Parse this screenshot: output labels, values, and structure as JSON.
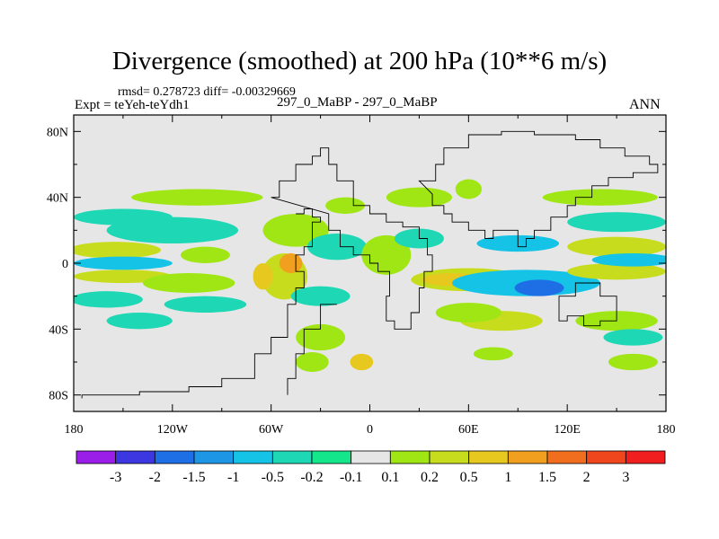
{
  "chart_data": {
    "type": "heatmap",
    "title": "Divergence (smoothed) at 200 hPa (10**6 m/s)",
    "stats": "rmsd= 0.278723 diff= -0.00329669",
    "experiment": "Expt = teYeh-teYdh1",
    "comparison": "297_0_MaBP - 297_0_MaBP",
    "season": "ANN",
    "xlim": [
      -180,
      180
    ],
    "ylim": [
      -90,
      90
    ],
    "x_ticks": [
      {
        "value": -180,
        "label": "180"
      },
      {
        "value": -120,
        "label": "120W"
      },
      {
        "value": -60,
        "label": "60W"
      },
      {
        "value": 0,
        "label": "0"
      },
      {
        "value": 60,
        "label": "60E"
      },
      {
        "value": 120,
        "label": "120E"
      },
      {
        "value": 180,
        "label": "180"
      }
    ],
    "y_ticks": [
      {
        "value": 80,
        "label": "80N"
      },
      {
        "value": 40,
        "label": "40N"
      },
      {
        "value": 0,
        "label": "0"
      },
      {
        "value": -40,
        "label": "40S"
      },
      {
        "value": -80,
        "label": "80S"
      }
    ],
    "colorbar": {
      "labels": [
        "-3",
        "-2",
        "-1.5",
        "-1",
        "-0.5",
        "-0.2",
        "-0.1",
        "0.1",
        "0.2",
        "0.5",
        "1",
        "1.5",
        "2",
        "3"
      ],
      "colors": [
        "#9a1ee8",
        "#3c37e0",
        "#1e6ee6",
        "#1e96e6",
        "#14c3e6",
        "#1ed7b4",
        "#14e68c",
        "#e6e6e6",
        "#a0e614",
        "#c8dc1e",
        "#e6c81e",
        "#f0a01e",
        "#f06e1e",
        "#f0461e",
        "#f01e1e"
      ]
    },
    "features": [
      {
        "name": "tropical band 1",
        "lon": -155,
        "lat": 8,
        "rx": 28,
        "ry": 5,
        "bin": 9
      },
      {
        "name": "tropical band 2",
        "lon": -150,
        "lat": 0,
        "rx": 30,
        "ry": 4,
        "bin": 4
      },
      {
        "name": "tropical band 3",
        "lon": -150,
        "lat": -8,
        "rx": 30,
        "ry": 4,
        "bin": 9
      },
      {
        "name": "band 4",
        "lon": -150,
        "lat": 28,
        "rx": 30,
        "ry": 5,
        "bin": 5
      },
      {
        "name": "band 5",
        "lon": -160,
        "lat": -22,
        "rx": 22,
        "ry": 5,
        "bin": 5
      },
      {
        "name": "band 6",
        "lon": -120,
        "lat": 20,
        "rx": 40,
        "ry": 8,
        "bin": 5
      },
      {
        "name": "band 7",
        "lon": -105,
        "lat": 40,
        "rx": 40,
        "ry": 5,
        "bin": 8
      },
      {
        "name": "band 8",
        "lon": -110,
        "lat": -12,
        "rx": 28,
        "ry": 6,
        "bin": 8
      },
      {
        "name": "band 9",
        "lon": -100,
        "lat": -25,
        "rx": 25,
        "ry": 5,
        "bin": 5
      },
      {
        "name": "west trop 1",
        "lon": -100,
        "lat": 5,
        "rx": 15,
        "ry": 5,
        "bin": 8
      },
      {
        "name": "south amer yel",
        "lon": -52,
        "lat": -8,
        "rx": 14,
        "ry": 14,
        "bin": 9
      },
      {
        "name": "amazon orange",
        "lon": -48,
        "lat": 0,
        "rx": 7,
        "ry": 6,
        "bin": 11
      },
      {
        "name": "amazon orange2",
        "lon": -65,
        "lat": -8,
        "rx": 6,
        "ry": 8,
        "bin": 10
      },
      {
        "name": "atlantic green",
        "lon": -45,
        "lat": 20,
        "rx": 20,
        "ry": 10,
        "bin": 8
      },
      {
        "name": "atl cyan",
        "lon": -20,
        "lat": 10,
        "rx": 18,
        "ry": 8,
        "bin": 5
      },
      {
        "name": "atl cyan2",
        "lon": -30,
        "lat": -20,
        "rx": 18,
        "ry": 6,
        "bin": 5
      },
      {
        "name": "afr green",
        "lon": 10,
        "lat": 5,
        "rx": 15,
        "ry": 12,
        "bin": 8
      },
      {
        "name": "afr cyan",
        "lon": 30,
        "lat": 15,
        "rx": 15,
        "ry": 6,
        "bin": 5
      },
      {
        "name": "med green",
        "lon": 30,
        "lat": 40,
        "rx": 20,
        "ry": 6,
        "bin": 8
      },
      {
        "name": "indian yellow",
        "lon": 60,
        "lat": -10,
        "rx": 35,
        "ry": 7,
        "bin": 9
      },
      {
        "name": "indian orange",
        "lon": 50,
        "lat": -10,
        "rx": 18,
        "ry": 4,
        "bin": 10
      },
      {
        "name": "indo cyan",
        "lon": 95,
        "lat": -12,
        "rx": 45,
        "ry": 8,
        "bin": 4
      },
      {
        "name": "indo blue",
        "lon": 103,
        "lat": -15,
        "rx": 15,
        "ry": 5,
        "bin": 2
      },
      {
        "name": "asia cyan",
        "lon": 90,
        "lat": 12,
        "rx": 25,
        "ry": 5,
        "bin": 4
      },
      {
        "name": "pacific yellow",
        "lon": 150,
        "lat": 10,
        "rx": 30,
        "ry": 6,
        "bin": 9
      },
      {
        "name": "pacific yellow2",
        "lon": 150,
        "lat": -5,
        "rx": 30,
        "ry": 5,
        "bin": 9
      },
      {
        "name": "pacific cyan",
        "lon": 160,
        "lat": 2,
        "rx": 25,
        "ry": 4,
        "bin": 4
      },
      {
        "name": "n pac cyan",
        "lon": 150,
        "lat": 25,
        "rx": 30,
        "ry": 6,
        "bin": 5
      },
      {
        "name": "n pac green",
        "lon": 140,
        "lat": 40,
        "rx": 35,
        "ry": 5,
        "bin": 8
      },
      {
        "name": "s ind yellow",
        "lon": 80,
        "lat": -35,
        "rx": 25,
        "ry": 6,
        "bin": 9
      },
      {
        "name": "s ind green",
        "lon": 60,
        "lat": -30,
        "rx": 20,
        "ry": 6,
        "bin": 8
      },
      {
        "name": "s pac green",
        "lon": 150,
        "lat": -35,
        "rx": 25,
        "ry": 6,
        "bin": 8
      },
      {
        "name": "s pac cyan",
        "lon": 160,
        "lat": -45,
        "rx": 18,
        "ry": 5,
        "bin": 5
      },
      {
        "name": "s atl green",
        "lon": -30,
        "lat": -45,
        "rx": 15,
        "ry": 8,
        "bin": 8
      },
      {
        "name": "s atl orange",
        "lon": -5,
        "lat": -60,
        "rx": 7,
        "ry": 5,
        "bin": 10
      },
      {
        "name": "s atl green2",
        "lon": -35,
        "lat": -60,
        "rx": 10,
        "ry": 6,
        "bin": 8
      },
      {
        "name": "so green",
        "lon": 75,
        "lat": -55,
        "rx": 12,
        "ry": 4,
        "bin": 8
      },
      {
        "name": "so green2",
        "lon": 160,
        "lat": -60,
        "rx": 15,
        "ry": 5,
        "bin": 8
      },
      {
        "name": "med green2",
        "lon": 60,
        "lat": 45,
        "rx": 8,
        "ry": 6,
        "bin": 8
      },
      {
        "name": "e pac cyan",
        "lon": -140,
        "lat": -35,
        "rx": 20,
        "ry": 5,
        "bin": 5
      },
      {
        "name": "n atl green",
        "lon": -15,
        "lat": 35,
        "rx": 12,
        "ry": 5,
        "bin": 8
      }
    ],
    "coastline": [
      [
        -45,
        30
      ],
      [
        -40,
        33
      ],
      [
        -35,
        28
      ],
      [
        -30,
        25
      ],
      [
        -35,
        10
      ],
      [
        -40,
        5
      ],
      [
        -45,
        -5
      ],
      [
        -40,
        -15
      ],
      [
        -45,
        -25
      ],
      [
        -50,
        -45
      ],
      [
        -60,
        -55
      ],
      [
        -70,
        -70
      ],
      [
        -90,
        -75
      ],
      [
        -110,
        -78
      ],
      [
        -140,
        -80
      ],
      [
        -175,
        -82
      ]
    ],
    "coastline2": [
      [
        -20,
        -25
      ],
      [
        -30,
        -40
      ],
      [
        -40,
        -55
      ],
      [
        -45,
        -70
      ],
      [
        -50,
        -80
      ]
    ],
    "coastline3": [
      [
        -60,
        40
      ],
      [
        -55,
        50
      ],
      [
        -45,
        60
      ],
      [
        -35,
        65
      ],
      [
        -30,
        70
      ],
      [
        -25,
        60
      ],
      [
        -20,
        50
      ],
      [
        -10,
        35
      ],
      [
        0,
        30
      ],
      [
        10,
        25
      ],
      [
        20,
        22
      ],
      [
        30,
        15
      ],
      [
        35,
        5
      ],
      [
        38,
        -5
      ],
      [
        33,
        -15
      ],
      [
        30,
        -30
      ],
      [
        25,
        -40
      ],
      [
        15,
        -35
      ],
      [
        10,
        -20
      ],
      [
        12,
        -5
      ],
      [
        5,
        0
      ],
      [
        0,
        5
      ],
      [
        -10,
        10
      ],
      [
        -18,
        20
      ],
      [
        -25,
        30
      ]
    ],
    "coastline4": [
      [
        30,
        50
      ],
      [
        40,
        60
      ],
      [
        45,
        70
      ],
      [
        60,
        78
      ],
      [
        80,
        80
      ],
      [
        100,
        78
      ],
      [
        125,
        75
      ],
      [
        140,
        70
      ],
      [
        155,
        65
      ],
      [
        170,
        60
      ],
      [
        175,
        55
      ],
      [
        160,
        52
      ],
      [
        145,
        47
      ],
      [
        135,
        40
      ],
      [
        125,
        35
      ],
      [
        120,
        28
      ],
      [
        110,
        20
      ],
      [
        100,
        15
      ],
      [
        95,
        10
      ],
      [
        90,
        20
      ],
      [
        80,
        20
      ],
      [
        75,
        15
      ],
      [
        70,
        20
      ],
      [
        60,
        25
      ],
      [
        50,
        30
      ],
      [
        45,
        35
      ],
      [
        38,
        42
      ]
    ],
    "coastline5": [
      [
        115,
        -20
      ],
      [
        125,
        -12
      ],
      [
        135,
        -12
      ],
      [
        140,
        -20
      ],
      [
        150,
        -25
      ],
      [
        150,
        -35
      ],
      [
        140,
        -38
      ],
      [
        130,
        -32
      ],
      [
        120,
        -35
      ],
      [
        115,
        -30
      ]
    ]
  }
}
